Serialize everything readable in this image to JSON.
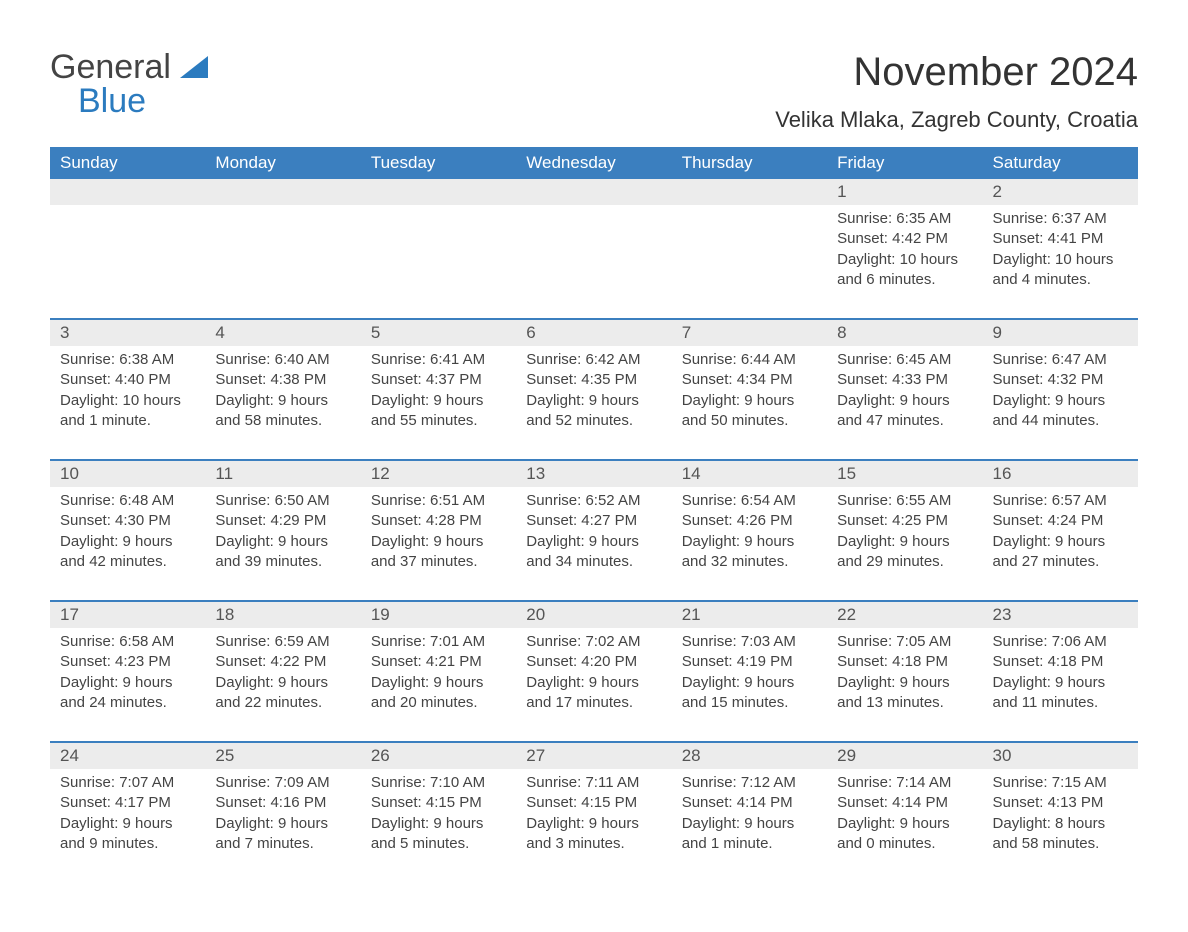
{
  "brand": {
    "general": "General",
    "blue": "Blue"
  },
  "header": {
    "month_title": "November 2024",
    "location": "Velika Mlaka, Zagreb County, Croatia"
  },
  "colors": {
    "header_bg": "#3b7fbf",
    "header_text": "#ffffff",
    "daynum_bg": "#ececec",
    "rule": "#3b7fbf",
    "body_text": "#444444",
    "page_bg": "#ffffff",
    "logo_blue": "#2b7bbf"
  },
  "day_names": [
    "Sunday",
    "Monday",
    "Tuesday",
    "Wednesday",
    "Thursday",
    "Friday",
    "Saturday"
  ],
  "weeks": [
    [
      null,
      null,
      null,
      null,
      null,
      {
        "n": "1",
        "sunrise": "Sunrise: 6:35 AM",
        "sunset": "Sunset: 4:42 PM",
        "day1": "Daylight: 10 hours",
        "day2": "and 6 minutes."
      },
      {
        "n": "2",
        "sunrise": "Sunrise: 6:37 AM",
        "sunset": "Sunset: 4:41 PM",
        "day1": "Daylight: 10 hours",
        "day2": "and 4 minutes."
      }
    ],
    [
      {
        "n": "3",
        "sunrise": "Sunrise: 6:38 AM",
        "sunset": "Sunset: 4:40 PM",
        "day1": "Daylight: 10 hours",
        "day2": "and 1 minute."
      },
      {
        "n": "4",
        "sunrise": "Sunrise: 6:40 AM",
        "sunset": "Sunset: 4:38 PM",
        "day1": "Daylight: 9 hours",
        "day2": "and 58 minutes."
      },
      {
        "n": "5",
        "sunrise": "Sunrise: 6:41 AM",
        "sunset": "Sunset: 4:37 PM",
        "day1": "Daylight: 9 hours",
        "day2": "and 55 minutes."
      },
      {
        "n": "6",
        "sunrise": "Sunrise: 6:42 AM",
        "sunset": "Sunset: 4:35 PM",
        "day1": "Daylight: 9 hours",
        "day2": "and 52 minutes."
      },
      {
        "n": "7",
        "sunrise": "Sunrise: 6:44 AM",
        "sunset": "Sunset: 4:34 PM",
        "day1": "Daylight: 9 hours",
        "day2": "and 50 minutes."
      },
      {
        "n": "8",
        "sunrise": "Sunrise: 6:45 AM",
        "sunset": "Sunset: 4:33 PM",
        "day1": "Daylight: 9 hours",
        "day2": "and 47 minutes."
      },
      {
        "n": "9",
        "sunrise": "Sunrise: 6:47 AM",
        "sunset": "Sunset: 4:32 PM",
        "day1": "Daylight: 9 hours",
        "day2": "and 44 minutes."
      }
    ],
    [
      {
        "n": "10",
        "sunrise": "Sunrise: 6:48 AM",
        "sunset": "Sunset: 4:30 PM",
        "day1": "Daylight: 9 hours",
        "day2": "and 42 minutes."
      },
      {
        "n": "11",
        "sunrise": "Sunrise: 6:50 AM",
        "sunset": "Sunset: 4:29 PM",
        "day1": "Daylight: 9 hours",
        "day2": "and 39 minutes."
      },
      {
        "n": "12",
        "sunrise": "Sunrise: 6:51 AM",
        "sunset": "Sunset: 4:28 PM",
        "day1": "Daylight: 9 hours",
        "day2": "and 37 minutes."
      },
      {
        "n": "13",
        "sunrise": "Sunrise: 6:52 AM",
        "sunset": "Sunset: 4:27 PM",
        "day1": "Daylight: 9 hours",
        "day2": "and 34 minutes."
      },
      {
        "n": "14",
        "sunrise": "Sunrise: 6:54 AM",
        "sunset": "Sunset: 4:26 PM",
        "day1": "Daylight: 9 hours",
        "day2": "and 32 minutes."
      },
      {
        "n": "15",
        "sunrise": "Sunrise: 6:55 AM",
        "sunset": "Sunset: 4:25 PM",
        "day1": "Daylight: 9 hours",
        "day2": "and 29 minutes."
      },
      {
        "n": "16",
        "sunrise": "Sunrise: 6:57 AM",
        "sunset": "Sunset: 4:24 PM",
        "day1": "Daylight: 9 hours",
        "day2": "and 27 minutes."
      }
    ],
    [
      {
        "n": "17",
        "sunrise": "Sunrise: 6:58 AM",
        "sunset": "Sunset: 4:23 PM",
        "day1": "Daylight: 9 hours",
        "day2": "and 24 minutes."
      },
      {
        "n": "18",
        "sunrise": "Sunrise: 6:59 AM",
        "sunset": "Sunset: 4:22 PM",
        "day1": "Daylight: 9 hours",
        "day2": "and 22 minutes."
      },
      {
        "n": "19",
        "sunrise": "Sunrise: 7:01 AM",
        "sunset": "Sunset: 4:21 PM",
        "day1": "Daylight: 9 hours",
        "day2": "and 20 minutes."
      },
      {
        "n": "20",
        "sunrise": "Sunrise: 7:02 AM",
        "sunset": "Sunset: 4:20 PM",
        "day1": "Daylight: 9 hours",
        "day2": "and 17 minutes."
      },
      {
        "n": "21",
        "sunrise": "Sunrise: 7:03 AM",
        "sunset": "Sunset: 4:19 PM",
        "day1": "Daylight: 9 hours",
        "day2": "and 15 minutes."
      },
      {
        "n": "22",
        "sunrise": "Sunrise: 7:05 AM",
        "sunset": "Sunset: 4:18 PM",
        "day1": "Daylight: 9 hours",
        "day2": "and 13 minutes."
      },
      {
        "n": "23",
        "sunrise": "Sunrise: 7:06 AM",
        "sunset": "Sunset: 4:18 PM",
        "day1": "Daylight: 9 hours",
        "day2": "and 11 minutes."
      }
    ],
    [
      {
        "n": "24",
        "sunrise": "Sunrise: 7:07 AM",
        "sunset": "Sunset: 4:17 PM",
        "day1": "Daylight: 9 hours",
        "day2": "and 9 minutes."
      },
      {
        "n": "25",
        "sunrise": "Sunrise: 7:09 AM",
        "sunset": "Sunset: 4:16 PM",
        "day1": "Daylight: 9 hours",
        "day2": "and 7 minutes."
      },
      {
        "n": "26",
        "sunrise": "Sunrise: 7:10 AM",
        "sunset": "Sunset: 4:15 PM",
        "day1": "Daylight: 9 hours",
        "day2": "and 5 minutes."
      },
      {
        "n": "27",
        "sunrise": "Sunrise: 7:11 AM",
        "sunset": "Sunset: 4:15 PM",
        "day1": "Daylight: 9 hours",
        "day2": "and 3 minutes."
      },
      {
        "n": "28",
        "sunrise": "Sunrise: 7:12 AM",
        "sunset": "Sunset: 4:14 PM",
        "day1": "Daylight: 9 hours",
        "day2": "and 1 minute."
      },
      {
        "n": "29",
        "sunrise": "Sunrise: 7:14 AM",
        "sunset": "Sunset: 4:14 PM",
        "day1": "Daylight: 9 hours",
        "day2": "and 0 minutes."
      },
      {
        "n": "30",
        "sunrise": "Sunrise: 7:15 AM",
        "sunset": "Sunset: 4:13 PM",
        "day1": "Daylight: 8 hours",
        "day2": "and 58 minutes."
      }
    ]
  ]
}
